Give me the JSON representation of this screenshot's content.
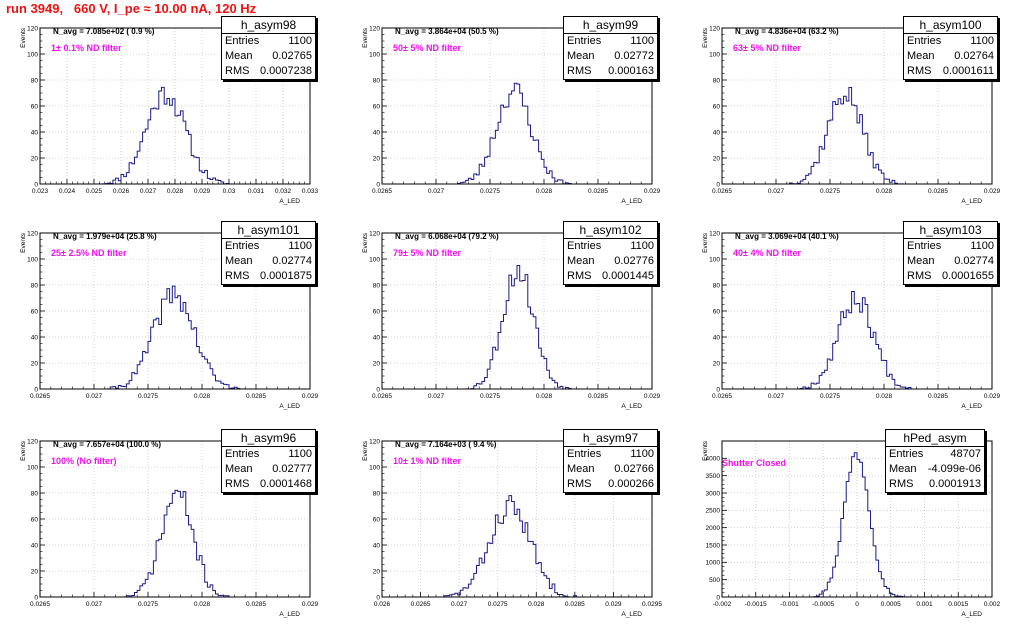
{
  "page": {
    "title": "run 3949,   660 V, I_pe ≈ 10.00 nA, 120 Hz"
  },
  "colors": {
    "histogram": "#1a1a8c",
    "title": "#ee1111",
    "annotation": "#ee11ee",
    "grid": "#c8c8c8"
  },
  "chart_data": [
    {
      "type": "histogram",
      "name": "h_asym98",
      "stats": {
        "entries_label": "Entries",
        "entries": "1100",
        "mean_label": "Mean",
        "mean": "0.02765",
        "rms_label": "RMS",
        "rms": "0.0007238"
      },
      "n_avg": "N_avg = 7.085e+02 ( 0.9 %)",
      "filter_label": "1± 0.1% ND filter",
      "ylabel": "Events",
      "xlabel": "A_LED",
      "xlim": [
        0.023,
        0.033
      ],
      "ylim": [
        0,
        120
      ],
      "xticks": [
        "0.023",
        "0.024",
        "0.025",
        "0.026",
        "0.027",
        "0.028",
        "0.029",
        "0.03",
        "0.031",
        "0.032",
        "0.033"
      ],
      "yticks": [
        "0",
        "20",
        "40",
        "60",
        "80",
        "100",
        "120"
      ],
      "mean": 0.02765,
      "rms": 0.0007238,
      "peak": 70,
      "bins": 100,
      "seed": 11
    },
    {
      "type": "histogram",
      "name": "h_asym99",
      "stats": {
        "entries_label": "Entries",
        "entries": "1100",
        "mean_label": "Mean",
        "mean": "0.02772",
        "rms_label": "RMS",
        "rms": "0.000163"
      },
      "n_avg": "N_avg = 3.864e+04 (50.5 %)",
      "filter_label": "50± 5% ND filter",
      "ylabel": "Events",
      "xlabel": "A_LED",
      "xlim": [
        0.0265,
        0.029
      ],
      "ylim": [
        0,
        120
      ],
      "xticks": [
        "0.0265",
        "0.027",
        "0.0275",
        "0.028",
        "0.0285",
        "0.029"
      ],
      "yticks": [
        "0",
        "20",
        "40",
        "60",
        "80",
        "100",
        "120"
      ],
      "mean": 0.02772,
      "rms": 0.000163,
      "peak": 72,
      "bins": 100,
      "seed": 23
    },
    {
      "type": "histogram",
      "name": "h_asym100",
      "stats": {
        "entries_label": "Entries",
        "entries": "1100",
        "mean_label": "Mean",
        "mean": "0.02764",
        "rms_label": "RMS",
        "rms": "0.0001611"
      },
      "n_avg": "N_avg = 4.836e+04 (63.2 %)",
      "filter_label": "63± 5% ND filter",
      "ylabel": "Events",
      "xlabel": "A_LED",
      "xlim": [
        0.0265,
        0.029
      ],
      "ylim": [
        0,
        120
      ],
      "xticks": [
        "0.0265",
        "0.027",
        "0.0275",
        "0.028",
        "0.0285",
        "0.029"
      ],
      "yticks": [
        "0",
        "20",
        "40",
        "60",
        "80",
        "100",
        "120"
      ],
      "mean": 0.02764,
      "rms": 0.0001611,
      "peak": 70,
      "bins": 100,
      "seed": 37
    },
    {
      "type": "histogram",
      "name": "h_asym101",
      "stats": {
        "entries_label": "Entries",
        "entries": "1100",
        "mean_label": "Mean",
        "mean": "0.02774",
        "rms_label": "RMS",
        "rms": "0.0001875"
      },
      "n_avg": "N_avg = 1.979e+04 (25.8 %)",
      "filter_label": "25± 2.5% ND filter",
      "ylabel": "Events",
      "xlabel": "A_LED",
      "xlim": [
        0.0265,
        0.029
      ],
      "ylim": [
        0,
        120
      ],
      "xticks": [
        "0.0265",
        "0.027",
        "0.0275",
        "0.028",
        "0.0285",
        "0.029"
      ],
      "yticks": [
        "0",
        "20",
        "40",
        "60",
        "80",
        "100",
        "120"
      ],
      "mean": 0.02774,
      "rms": 0.0001875,
      "peak": 73,
      "bins": 100,
      "seed": 41
    },
    {
      "type": "histogram",
      "name": "h_asym102",
      "stats": {
        "entries_label": "Entries",
        "entries": "1100",
        "mean_label": "Mean",
        "mean": "0.02776",
        "rms_label": "RMS",
        "rms": "0.0001445"
      },
      "n_avg": "N_avg = 6.068e+04 (79.2 %)",
      "filter_label": "79± 5% ND filter",
      "ylabel": "Events",
      "xlabel": "A_LED",
      "xlim": [
        0.0265,
        0.029
      ],
      "ylim": [
        0,
        120
      ],
      "xticks": [
        "0.0265",
        "0.027",
        "0.0275",
        "0.028",
        "0.0285",
        "0.029"
      ],
      "yticks": [
        "0",
        "20",
        "40",
        "60",
        "80",
        "100",
        "120"
      ],
      "mean": 0.02776,
      "rms": 0.0001445,
      "peak": 92,
      "bins": 100,
      "seed": 53
    },
    {
      "type": "histogram",
      "name": "h_asym103",
      "stats": {
        "entries_label": "Entries",
        "entries": "1100",
        "mean_label": "Mean",
        "mean": "0.02774",
        "rms_label": "RMS",
        "rms": "0.0001655"
      },
      "n_avg": "N_avg = 3.069e+04 (40.1 %)",
      "filter_label": "40± 4% ND filter",
      "ylabel": "Events",
      "xlabel": "A_LED",
      "xlim": [
        0.0265,
        0.029
      ],
      "ylim": [
        0,
        120
      ],
      "xticks": [
        "0.0265",
        "0.027",
        "0.0275",
        "0.028",
        "0.0285",
        "0.029"
      ],
      "yticks": [
        "0",
        "20",
        "40",
        "60",
        "80",
        "100",
        "120"
      ],
      "mean": 0.02774,
      "rms": 0.0001655,
      "peak": 70,
      "bins": 100,
      "seed": 67
    },
    {
      "type": "histogram",
      "name": "h_asym96",
      "stats": {
        "entries_label": "Entries",
        "entries": "1100",
        "mean_label": "Mean",
        "mean": "0.02777",
        "rms_label": "RMS",
        "rms": "0.0001468"
      },
      "n_avg": "N_avg = 7.657e+04 (100.0 %)",
      "filter_label": "100% (No filter)",
      "ylabel": "Events",
      "xlabel": "A_LED",
      "xlim": [
        0.0265,
        0.029
      ],
      "ylim": [
        0,
        120
      ],
      "xticks": [
        "0.0265",
        "0.027",
        "0.0275",
        "0.028",
        "0.0285",
        "0.029"
      ],
      "yticks": [
        "0",
        "20",
        "40",
        "60",
        "80",
        "100",
        "120"
      ],
      "mean": 0.02777,
      "rms": 0.0001468,
      "peak": 80,
      "bins": 100,
      "seed": 71
    },
    {
      "type": "histogram",
      "name": "h_asym97",
      "stats": {
        "entries_label": "Entries",
        "entries": "1100",
        "mean_label": "Mean",
        "mean": "0.02766",
        "rms_label": "RMS",
        "rms": "0.000266"
      },
      "n_avg": "N_avg = 7.164e+03 ( 9.4 %)",
      "filter_label": "10± 1% ND filter",
      "ylabel": "Events",
      "xlabel": "A_LED",
      "xlim": [
        0.026,
        0.0295
      ],
      "ylim": [
        0,
        120
      ],
      "xticks": [
        "0.026",
        "0.0265",
        "0.027",
        "0.0275",
        "0.028",
        "0.0285",
        "0.029",
        "0.0295"
      ],
      "yticks": [
        "0",
        "20",
        "40",
        "60",
        "80",
        "100",
        "120"
      ],
      "mean": 0.02766,
      "rms": 0.000266,
      "peak": 70,
      "bins": 100,
      "seed": 83
    },
    {
      "type": "histogram",
      "name": "hPed_asym",
      "stats": {
        "entries_label": "Entries",
        "entries": "48707",
        "mean_label": "Mean",
        "mean": "-4.099e-06",
        "rms_label": "RMS",
        "rms": "0.0001913"
      },
      "n_avg": "",
      "filter_label": "Shutter Closed",
      "ylabel": "Events",
      "xlabel": "A_LED",
      "xlim": [
        -0.002,
        0.002
      ],
      "ylim": [
        0,
        4500
      ],
      "xticks": [
        "-0.002",
        "-0.0015",
        "-0.001",
        "-0.0005",
        "0",
        "0.0005",
        "0.001",
        "0.0015",
        "0.002"
      ],
      "yticks": [
        "0",
        "500",
        "1000",
        "1500",
        "2000",
        "2500",
        "3000",
        "3500",
        "4000"
      ],
      "mean": -4.099e-06,
      "rms": 0.0001913,
      "peak": 4150,
      "bins": 100,
      "seed": 97
    }
  ]
}
